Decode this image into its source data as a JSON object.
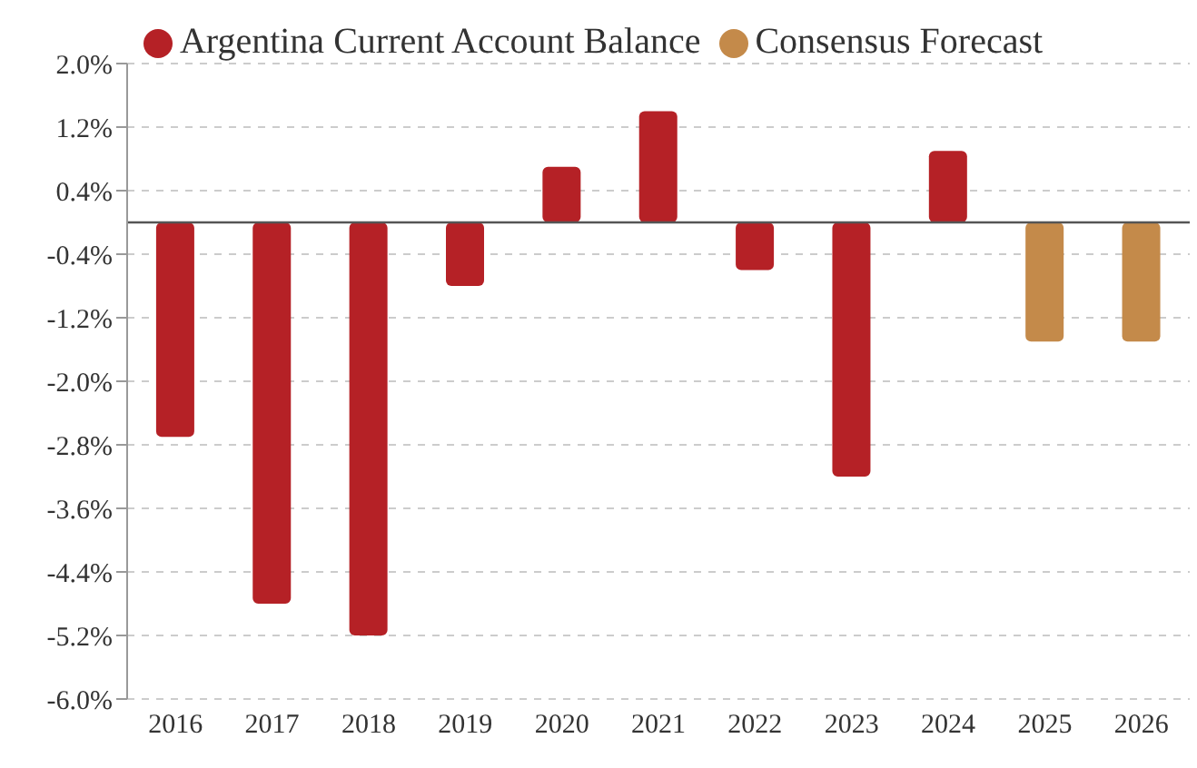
{
  "chart_data": {
    "type": "bar",
    "categories": [
      "2016",
      "2017",
      "2018",
      "2019",
      "2020",
      "2021",
      "2022",
      "2023",
      "2024",
      "2025",
      "2026"
    ],
    "series": [
      {
        "name": "Argentina Current Account Balance",
        "color": "#b52126",
        "values": [
          -2.7,
          -4.8,
          -5.2,
          -0.8,
          0.7,
          1.4,
          -0.6,
          -3.2,
          0.9,
          null,
          null
        ]
      },
      {
        "name": "Consensus Forecast",
        "color": "#c48a4a",
        "values": [
          null,
          null,
          null,
          null,
          null,
          null,
          null,
          null,
          null,
          -1.5,
          -1.5
        ]
      }
    ],
    "ylim": [
      -6,
      2
    ],
    "yticks": [
      {
        "value": 2,
        "label": "2.0%"
      },
      {
        "value": 1.2,
        "label": "1.2%"
      },
      {
        "value": 0.4,
        "label": "0.4%"
      },
      {
        "value": -0.4,
        "label": "-0.4%"
      },
      {
        "value": -1.2,
        "label": "-1.2%"
      },
      {
        "value": -2,
        "label": "-2.0%"
      },
      {
        "value": -2.8,
        "label": "-2.8%"
      },
      {
        "value": -3.6,
        "label": "-3.6%"
      },
      {
        "value": -4.4,
        "label": "-4.4%"
      },
      {
        "value": -5.2,
        "label": "-5.2%"
      },
      {
        "value": -6,
        "label": "-6.0%"
      }
    ],
    "ref_lines": [
      {
        "axis": "y",
        "value": 0,
        "color": "#555555"
      }
    ],
    "grid": "y",
    "legend": "top"
  }
}
